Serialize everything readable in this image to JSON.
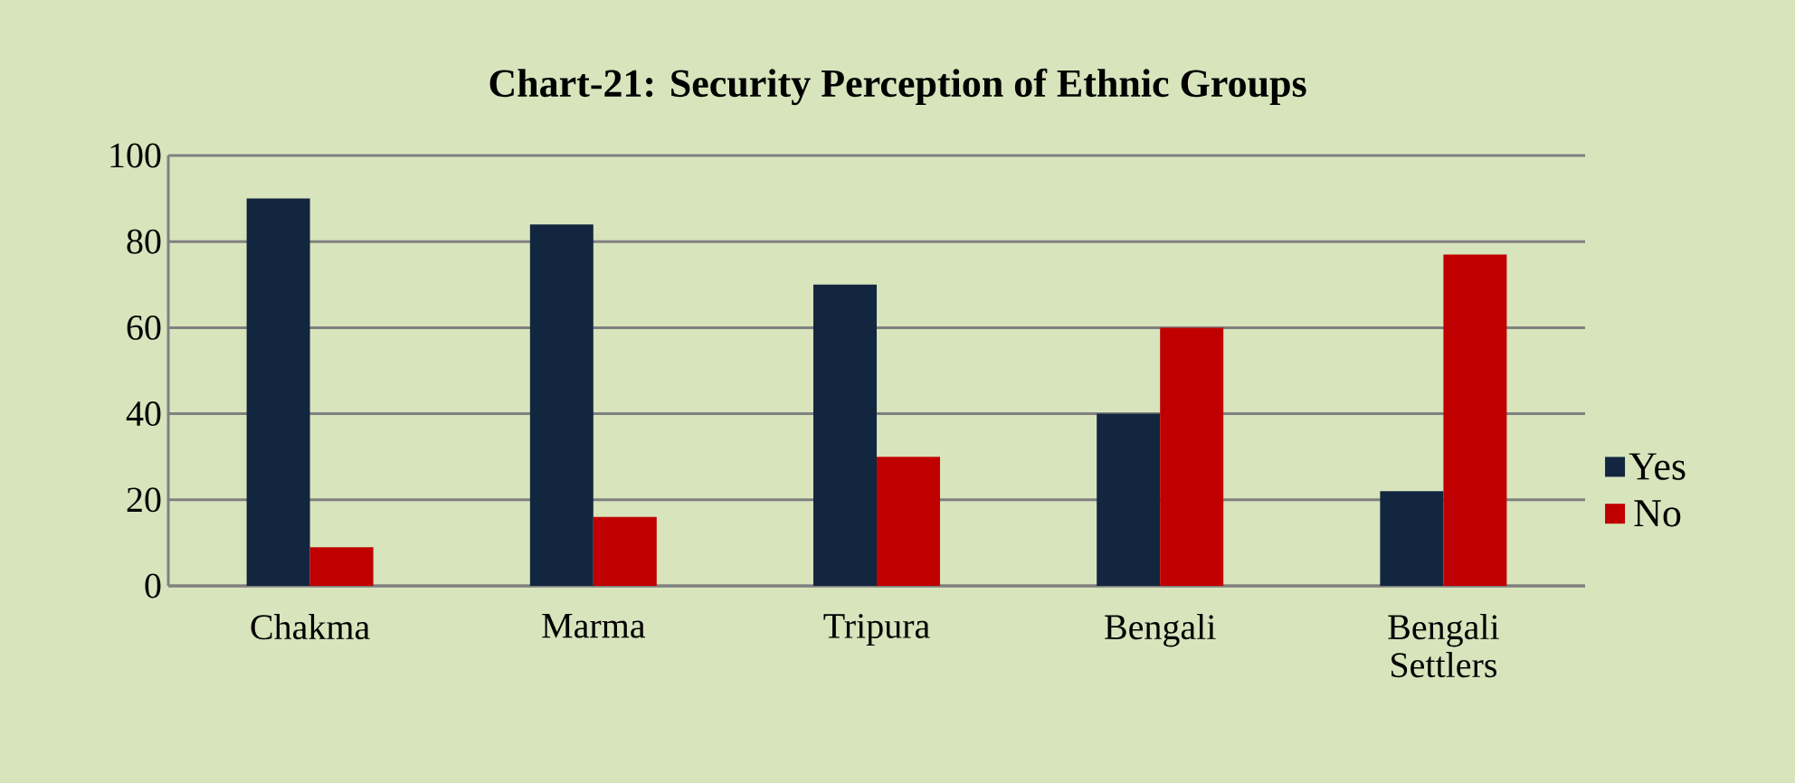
{
  "chart_data": {
    "type": "bar",
    "title": "Chart-21:  Security  Perception of Ethnic Groups",
    "categories": [
      "Chakma",
      "Marma",
      "Tripura",
      "Bengali",
      "Bengali Settlers"
    ],
    "series": [
      {
        "name": "Yes",
        "color": "#12263f",
        "values": [
          90,
          84,
          70,
          40,
          22
        ]
      },
      {
        "name": "No",
        "color": "#c00000",
        "values": [
          9,
          16,
          30,
          60,
          77
        ]
      }
    ],
    "ylim": [
      0,
      100
    ],
    "yticks": [
      0,
      20,
      40,
      60,
      80,
      100
    ],
    "grid": "y",
    "legend": "right"
  }
}
